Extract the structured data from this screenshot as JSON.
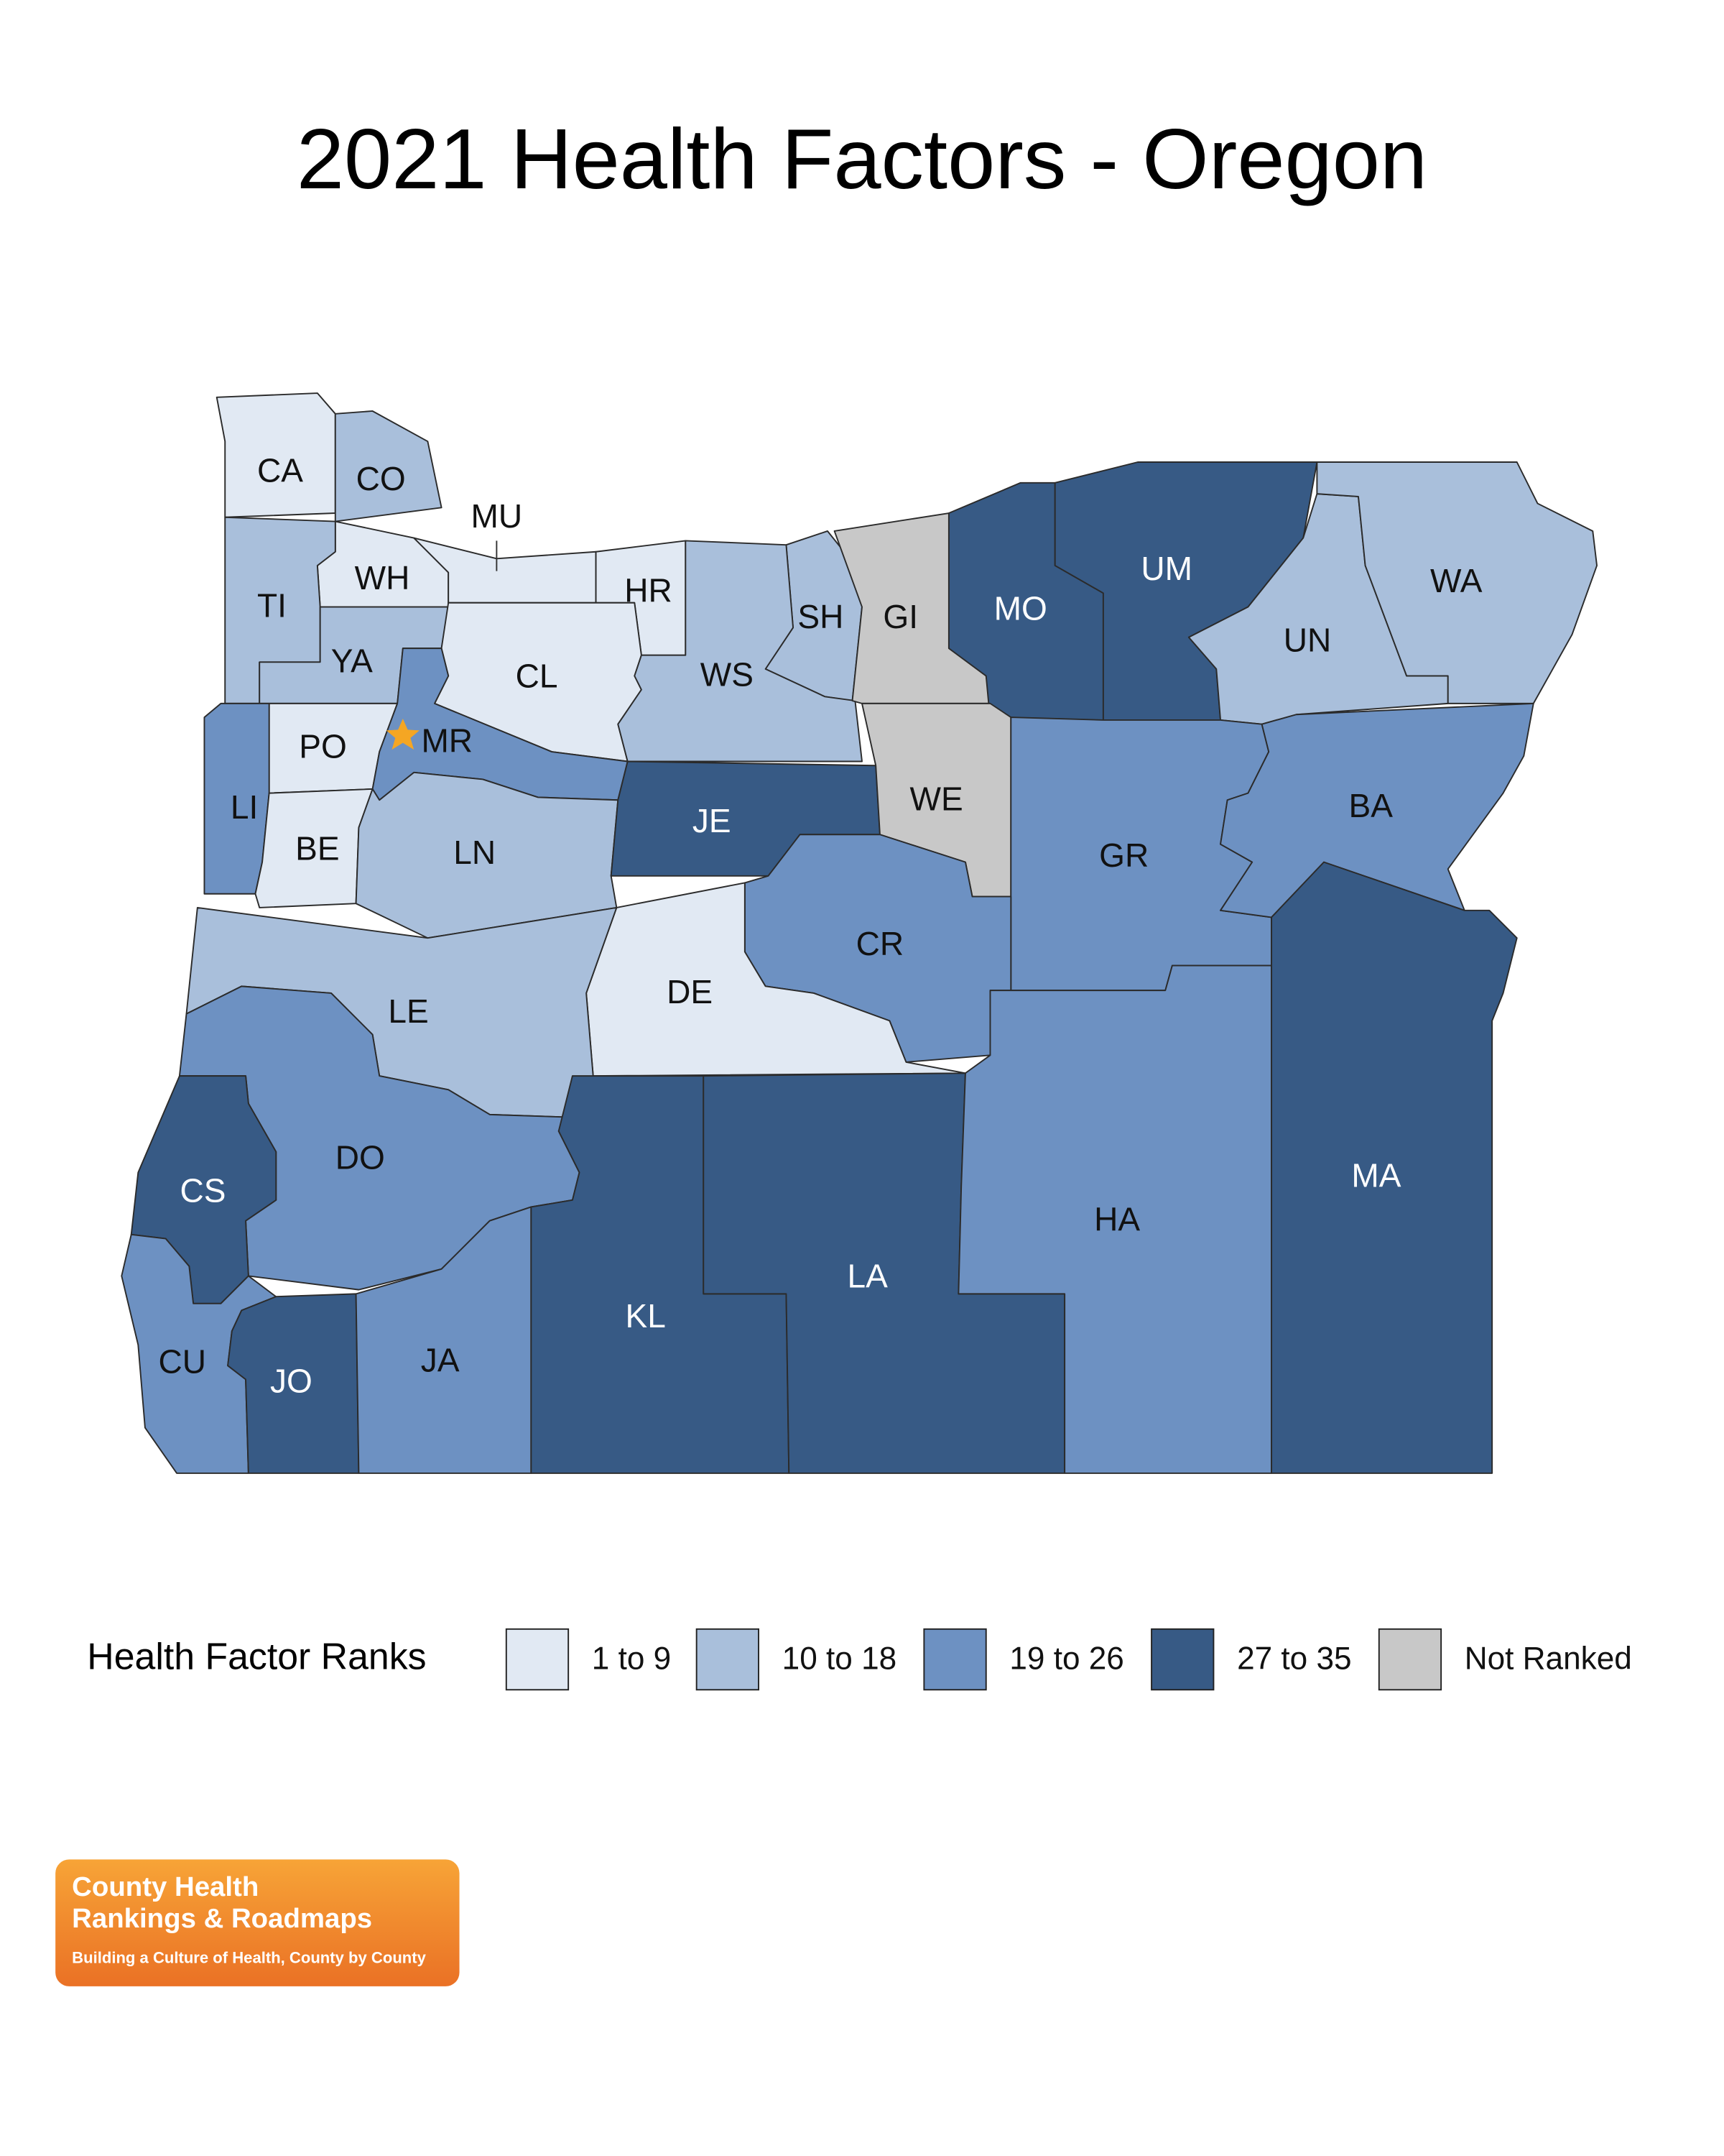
{
  "title": "2021 Health Factors - Oregon",
  "counties": [
    {
      "label": "CA",
      "color": "#e1e9f3"
    },
    {
      "label": "CO",
      "color": "#a9bfdb"
    },
    {
      "label": "WH",
      "color": "#e1e9f3"
    },
    {
      "label": "MU",
      "color": "#e1e9f3"
    },
    {
      "label": "TI",
      "color": "#a9bfdb"
    },
    {
      "label": "YA",
      "color": "#a9bfdb"
    },
    {
      "label": "HR",
      "color": "#e1e9f3"
    },
    {
      "label": "CL",
      "color": "#e1e9f3"
    },
    {
      "label": "SH",
      "color": "#a9bfdb"
    },
    {
      "label": "WS",
      "color": "#a9bfdb"
    },
    {
      "label": "GI",
      "color": "#c8c8c8"
    },
    {
      "label": "MO",
      "color": "#375a85"
    },
    {
      "label": "UM",
      "color": "#375a85"
    },
    {
      "label": "UN",
      "color": "#a9bfdb"
    },
    {
      "label": "WA",
      "color": "#a9bfdb"
    },
    {
      "label": "PO",
      "color": "#e1e9f3"
    },
    {
      "label": "MR",
      "color": "#6d91c2"
    },
    {
      "label": "LI",
      "color": "#6d91c2"
    },
    {
      "label": "BE",
      "color": "#e1e9f3"
    },
    {
      "label": "LN",
      "color": "#a9bfdb"
    },
    {
      "label": "JE",
      "color": "#375a85"
    },
    {
      "label": "WE",
      "color": "#c8c8c8"
    },
    {
      "label": "GR",
      "color": "#6d91c2"
    },
    {
      "label": "BA",
      "color": "#6d91c2"
    },
    {
      "label": "CR",
      "color": "#6d91c2"
    },
    {
      "label": "DE",
      "color": "#e1e9f3"
    },
    {
      "label": "LE",
      "color": "#a9bfdb"
    },
    {
      "label": "DO",
      "color": "#6d91c2"
    },
    {
      "label": "CS",
      "color": "#375a85"
    },
    {
      "label": "CU",
      "color": "#6d91c2"
    },
    {
      "label": "JO",
      "color": "#375a85"
    },
    {
      "label": "JA",
      "color": "#6d91c2"
    },
    {
      "label": "KL",
      "color": "#375a85"
    },
    {
      "label": "LA",
      "color": "#375a85"
    },
    {
      "label": "HA",
      "color": "#6d91c2"
    },
    {
      "label": "MA",
      "color": "#375a85"
    }
  ],
  "legend": {
    "title": "Health Factor Ranks",
    "items": [
      {
        "label": "1 to 9",
        "color": "#e1e9f3"
      },
      {
        "label": "10 to 18",
        "color": "#a9bfdb"
      },
      {
        "label": "19 to 26",
        "color": "#6d91c2"
      },
      {
        "label": "27 to 35",
        "color": "#375a85"
      },
      {
        "label": "Not Ranked",
        "color": "#c8c8c8"
      }
    ]
  },
  "logo": {
    "line1": "County Health",
    "line2": "Rankings & Roadmaps",
    "tagline": "Building a Culture of Health, County by County"
  }
}
